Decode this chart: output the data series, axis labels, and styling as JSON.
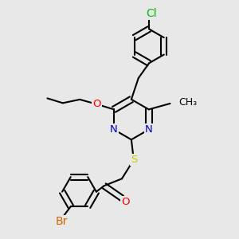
{
  "bg_color": "#e8e8e8",
  "bond_color": "#000000",
  "bond_width": 1.5,
  "dbo": 0.018,
  "atom_colors": {
    "N": "#0000cc",
    "O": "#ff0000",
    "S": "#cccc00",
    "Br": "#cc6600",
    "Cl": "#00bb00",
    "C": "#000000"
  },
  "fontsize": 9.5
}
